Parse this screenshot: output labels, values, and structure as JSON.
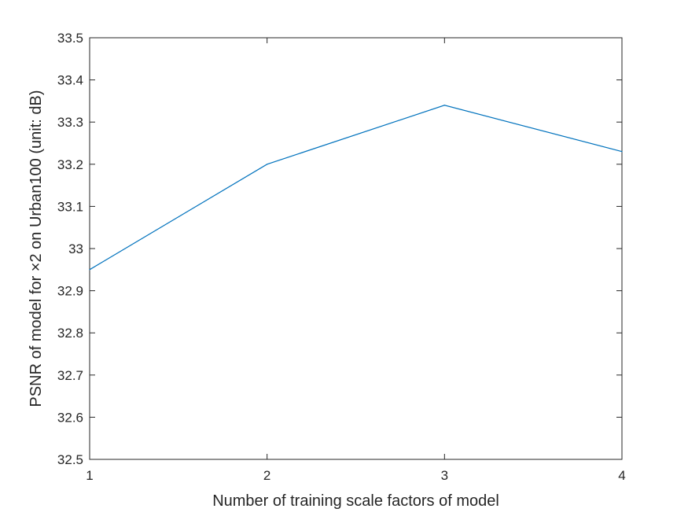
{
  "chart_data": {
    "type": "line",
    "title": "",
    "xlabel": "Number of training scale factors of model",
    "ylabel": "PSNR of model for ×2 on Urban100 (unit: dB)",
    "xlim": [
      1,
      4
    ],
    "ylim": [
      32.5,
      33.5
    ],
    "x_ticks": [
      "1",
      "2",
      "3",
      "4"
    ],
    "y_ticks": [
      "32.5",
      "32.6",
      "32.7",
      "32.8",
      "32.9",
      "33",
      "33.1",
      "33.2",
      "33.3",
      "33.4",
      "33.5"
    ],
    "grid": false,
    "legend": "none",
    "series": [
      {
        "x": [
          1,
          2,
          3,
          4
        ],
        "values": [
          32.95,
          33.2,
          33.34,
          33.23
        ],
        "color": "#0072BD"
      }
    ]
  }
}
